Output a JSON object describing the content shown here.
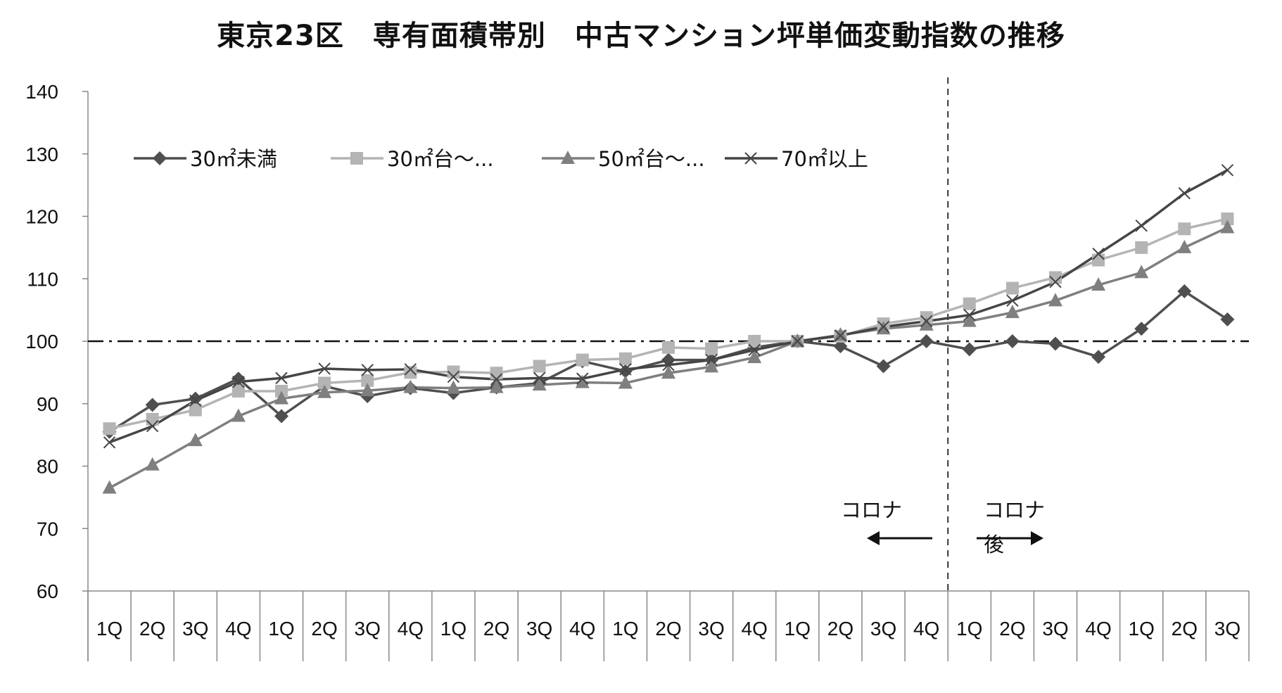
{
  "chart_data": {
    "type": "line",
    "title": "東京23区　専有面積帯別　中古マンション坪単価変動指数の推移",
    "ylim": [
      60,
      140
    ],
    "yticks": [
      60,
      70,
      80,
      90,
      100,
      110,
      120,
      130,
      140
    ],
    "categories": [
      "1Q",
      "2Q",
      "3Q",
      "4Q",
      "1Q",
      "2Q",
      "3Q",
      "4Q",
      "1Q",
      "2Q",
      "3Q",
      "4Q",
      "1Q",
      "2Q",
      "3Q",
      "4Q",
      "1Q",
      "2Q",
      "3Q",
      "4Q",
      "1Q",
      "2Q",
      "3Q",
      "4Q",
      "1Q",
      "2Q",
      "3Q"
    ],
    "grid": "horizontal reference line at 100 (dash-dot)",
    "legend_position": "top-left inside plot",
    "series": [
      {
        "name": "30㎡未満",
        "marker": "diamond",
        "color": "#4f4f4f",
        "values": [
          85.5,
          89.8,
          90.8,
          94.0,
          88.0,
          92.8,
          91.2,
          92.5,
          91.7,
          92.6,
          93.3,
          96.8,
          95.2,
          97.0,
          97.0,
          99.0,
          100.0,
          99.2,
          96.0,
          100.0,
          98.7,
          100.0,
          99.6,
          97.5,
          102.0,
          108.0,
          103.5
        ]
      },
      {
        "name": "30㎡台～...",
        "marker": "square",
        "color": "#b4b4b4",
        "values": [
          86.0,
          87.5,
          89.0,
          92.0,
          92.0,
          93.3,
          93.7,
          95.0,
          95.1,
          94.9,
          96.0,
          97.0,
          97.2,
          99.0,
          98.8,
          100.0,
          100.0,
          100.8,
          102.8,
          103.8,
          106.0,
          108.5,
          110.2,
          113.0,
          115.0,
          118.0,
          119.6
        ]
      },
      {
        "name": "50㎡台～...",
        "marker": "triangle",
        "color": "#7f7f7f",
        "values": [
          76.5,
          80.2,
          84.1,
          88.0,
          90.8,
          91.8,
          92.1,
          92.6,
          92.5,
          92.6,
          93.0,
          93.4,
          93.3,
          94.9,
          95.9,
          97.4,
          100.0,
          101.0,
          102.0,
          102.6,
          103.2,
          104.6,
          106.5,
          109.0,
          111.0,
          115.0,
          118.2
        ]
      },
      {
        "name": "70㎡以上",
        "marker": "x",
        "color": "#454545",
        "values": [
          83.8,
          86.4,
          90.5,
          93.5,
          94.1,
          95.6,
          95.4,
          95.5,
          94.3,
          93.9,
          94.1,
          94.0,
          95.5,
          96.2,
          97.0,
          98.6,
          100.0,
          100.9,
          102.3,
          103.2,
          104.2,
          106.5,
          109.5,
          114.0,
          118.5,
          123.7,
          127.4
        ]
      }
    ],
    "annotations": {
      "divider_label": "コロナ",
      "before_label": "コロナ",
      "after_label": "コロナ後"
    }
  }
}
